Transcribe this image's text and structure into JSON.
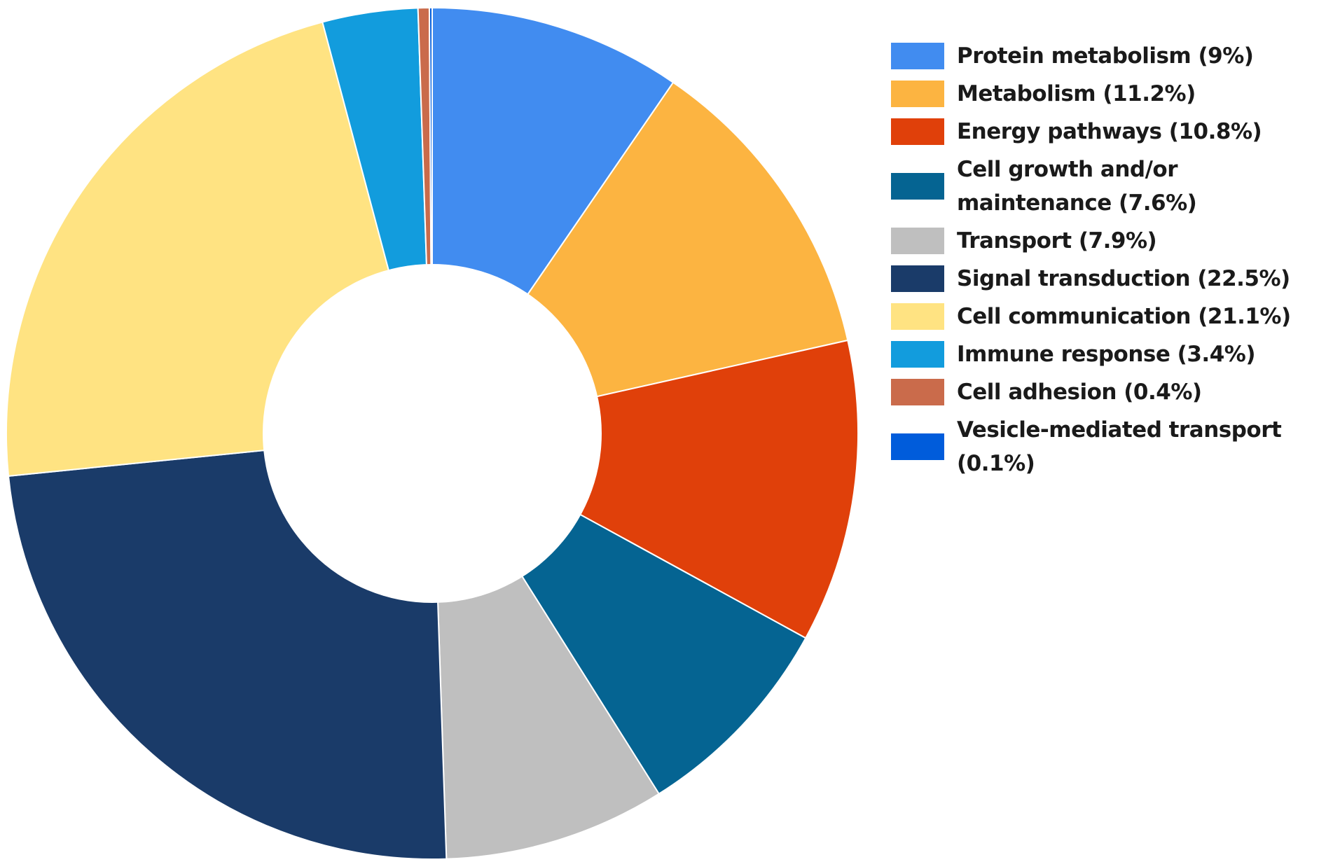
{
  "chart_data": {
    "type": "pie",
    "donut": true,
    "start": "top",
    "direction": "clockwise",
    "legend_position": "right",
    "slices": [
      {
        "label": "Protein metabolism (9%)",
        "value": 9,
        "color": "#418cf0"
      },
      {
        "label": "Metabolism (11.2%)",
        "value": 11.2,
        "color": "#fcb441"
      },
      {
        "label": "Energy pathways (10.8%)",
        "value": 10.8,
        "color": "#e0400a"
      },
      {
        "label": "Cell growth and/or maintenance (7.6%)",
        "value": 7.6,
        "color": "#056492"
      },
      {
        "label": "Transport (7.9%)",
        "value": 7.9,
        "color": "#bfbfbf"
      },
      {
        "label": "Signal transduction (22.5%)",
        "value": 22.5,
        "color": "#1a3b69"
      },
      {
        "label": "Cell communication (21.1%)",
        "value": 21.1,
        "color": "#ffe382"
      },
      {
        "label": "Immune response (3.4%)",
        "value": 3.4,
        "color": "#129cdd"
      },
      {
        "label": "Cell adhesion (0.4%)",
        "value": 0.4,
        "color": "#ca6b4b"
      },
      {
        "label": "Vesicle-mediated transport (0.1%)",
        "value": 0.1,
        "color": "#005cdb"
      }
    ]
  }
}
